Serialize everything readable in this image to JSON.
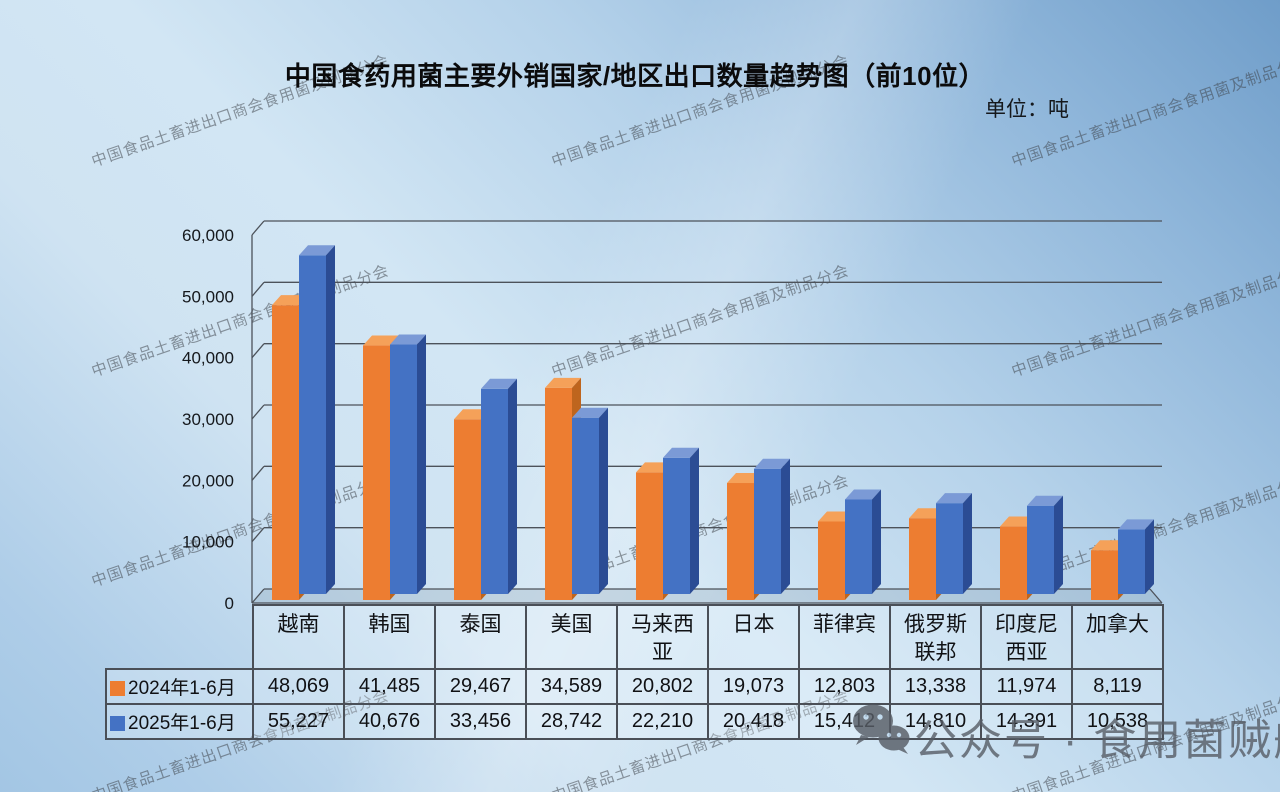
{
  "title": "中国食药用菌主要外销国家/地区出口数量趋势图（前10位）",
  "unit_label": "单位：吨",
  "watermark": {
    "text": "中国食品土畜进出口商会食用菌及制品分会"
  },
  "wechat": {
    "label": "公众号 · 食用菌贼船",
    "icon": "wechat-logo",
    "color": "#575d66"
  },
  "colors": {
    "background_top": "#6f9dc9",
    "background_light": "#d2e6f4",
    "gridline": "#4c525a",
    "table_border": "#4a4f57",
    "text": "#101114"
  },
  "chart_data": {
    "type": "bar",
    "style": "3d-clustered-column",
    "title": "中国食药用菌主要外销国家/地区出口数量趋势图（前10位）",
    "ylabel": "吨",
    "xlabel": "",
    "grid": true,
    "legend_position": "table-left",
    "data_table_shown": true,
    "ylim": [
      0,
      60000
    ],
    "ytick_step": 10000,
    "categories": [
      "越南",
      "韩国",
      "泰国",
      "美国",
      "马来西亚",
      "日本",
      "菲律宾",
      "俄罗斯联邦",
      "印度尼西亚",
      "加拿大"
    ],
    "series": [
      {
        "name": "2024年1-6月",
        "color": {
          "front": "#ED7D31",
          "top": "#F5A159",
          "side": "#BE651E"
        },
        "values": [
          48069,
          41485,
          29467,
          34589,
          20802,
          19073,
          12803,
          13338,
          11974,
          8119
        ]
      },
      {
        "name": "2025年1-6月",
        "color": {
          "front": "#4472C4",
          "top": "#7B9AD6",
          "side": "#2B4C94"
        },
        "values": [
          55227,
          40676,
          33456,
          28742,
          22210,
          20418,
          15412,
          14810,
          14391,
          10538
        ]
      }
    ]
  }
}
